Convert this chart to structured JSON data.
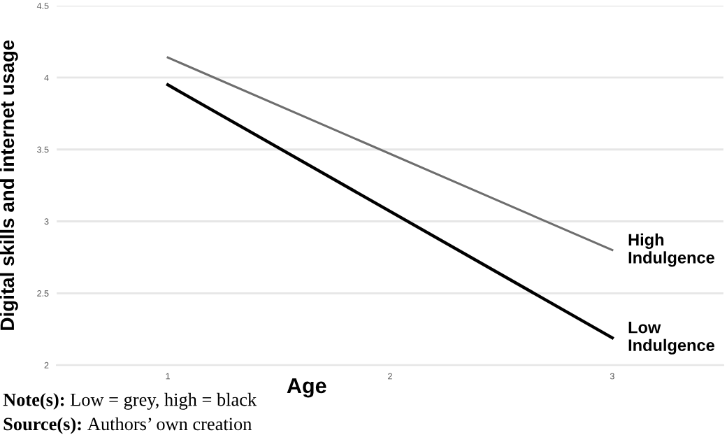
{
  "chart_data": {
    "type": "line",
    "xlabel": "Age",
    "ylabel": "Digital skills and internet usage",
    "x": [
      1,
      3
    ],
    "series": [
      {
        "name": "High\nIndulgence",
        "color": "#6e6e6e",
        "values": [
          4.14,
          2.8
        ]
      },
      {
        "name": "Low\nIndulgence",
        "color": "#000000",
        "values": [
          3.95,
          2.19
        ]
      }
    ],
    "xlim": [
      0.5,
      3.5
    ],
    "xticks": [
      1,
      2,
      3
    ],
    "ylim": [
      2,
      4.5
    ],
    "yticks": [
      2,
      2.5,
      3,
      3.5,
      4,
      4.5
    ],
    "grid": "y",
    "legend": false,
    "marker": "none",
    "line_style": "solid",
    "annotations": [
      "Note(s): Low = grey, high = black",
      "Source(s): Authors’ own creation"
    ]
  }
}
